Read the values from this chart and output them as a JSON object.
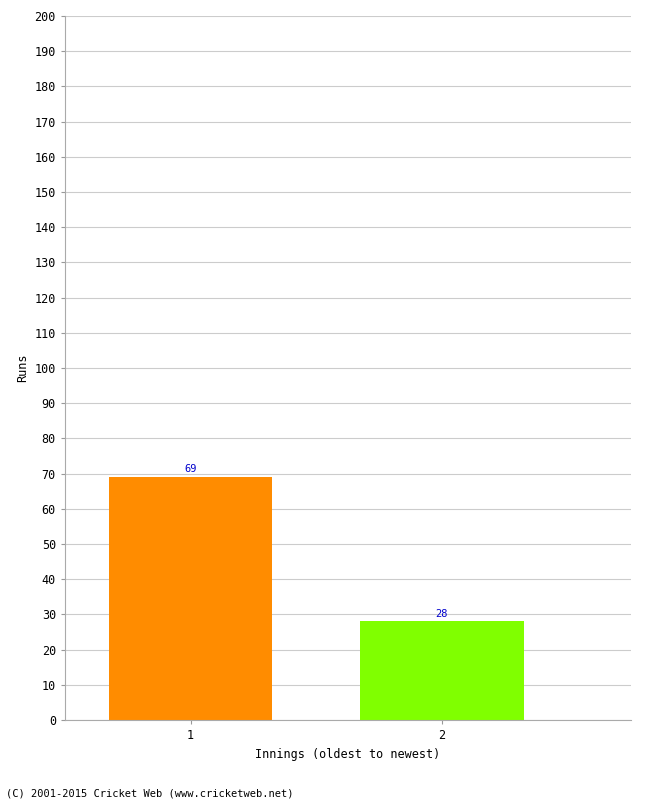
{
  "categories": [
    "1",
    "2"
  ],
  "values": [
    69,
    28
  ],
  "bar_colors": [
    "#FF8C00",
    "#80FF00"
  ],
  "xlabel": "Innings (oldest to newest)",
  "ylabel": "Runs",
  "ylim": [
    0,
    200
  ],
  "yticks": [
    0,
    10,
    20,
    30,
    40,
    50,
    60,
    70,
    80,
    90,
    100,
    110,
    120,
    130,
    140,
    150,
    160,
    170,
    180,
    190,
    200
  ],
  "value_labels": [
    "69",
    "28"
  ],
  "value_label_color": "#0000CC",
  "value_label_fontsize": 7.5,
  "footer": "(C) 2001-2015 Cricket Web (www.cricketweb.net)",
  "background_color": "#FFFFFF",
  "grid_color": "#CCCCCC",
  "bar_width": 0.65,
  "tick_label_fontsize": 8.5,
  "axis_label_fontsize": 8.5,
  "figsize": [
    6.5,
    8.0
  ],
  "dpi": 100
}
